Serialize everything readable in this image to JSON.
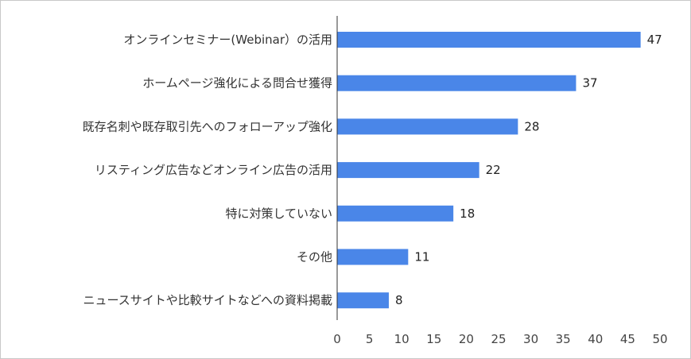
{
  "chart_data": {
    "type": "bar",
    "orientation": "horizontal",
    "categories": [
      "オンラインセミナー(Webinar）の活用",
      "ホームページ強化による問合せ獲得",
      "既存名刺や既存取引先へのフォローアップ強化",
      "リスティング広告などオンライン広告の活用",
      "特に対策していない",
      "その他",
      "ニュースサイトや比較サイトなどへの資料掲載"
    ],
    "values": [
      47,
      37,
      28,
      22,
      18,
      11,
      8
    ],
    "value_labels": [
      "47",
      "37",
      "28",
      "22",
      "18",
      "11",
      "8"
    ],
    "xlim": [
      0,
      50
    ],
    "xticks": [
      0,
      5,
      10,
      15,
      20,
      25,
      30,
      35,
      40,
      45,
      50
    ],
    "xtick_labels": [
      "0",
      "5",
      "10",
      "15",
      "20",
      "25",
      "30",
      "35",
      "40",
      "45",
      "50"
    ],
    "bar_color": "#4a86e8",
    "grid": false,
    "legend": "none"
  }
}
